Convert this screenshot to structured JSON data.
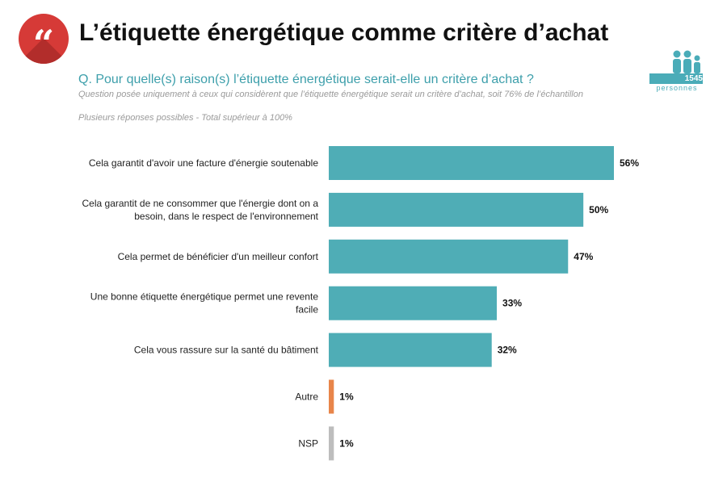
{
  "header": {
    "quote_glyph": "“",
    "title": "L’étiquette énergétique comme critère d’achat",
    "question": "Q. Pour quelle(s) raison(s) l’étiquette énergétique serait-elle un critère d’achat ?",
    "note_scope": "Question posée uniquement à ceux qui considèrent que l’étiquette énergétique serait un critère d’achat, soit 76% de l’échantillon",
    "note_multi": "Plusieurs réponses possibles - Total supérieur à 100%"
  },
  "sample": {
    "count": "1545",
    "label": "personnes",
    "icon": "people-group-icon"
  },
  "colors": {
    "teal": "#4fadb6",
    "orange": "#e8854a",
    "gray": "#bdbdbd",
    "accent_red": "#d63a37"
  },
  "chart_data": {
    "type": "bar",
    "orientation": "horizontal",
    "categories": [
      [
        "Cela garantit d'avoir une facture d'énergie soutenable"
      ],
      [
        "Cela garantit de ne consommer que l'énergie dont on a",
        "besoin, dans le respect de l'environnement"
      ],
      [
        "Cela permet de bénéficier d'un meilleur confort"
      ],
      [
        "Une bonne étiquette énergétique permet une revente",
        "facile"
      ],
      [
        "Cela vous rassure sur la santé du bâtiment"
      ],
      [
        "Autre"
      ],
      [
        "NSP"
      ]
    ],
    "values": [
      56,
      50,
      47,
      33,
      32,
      1,
      1
    ],
    "value_labels": [
      "56%",
      "50%",
      "47%",
      "33%",
      "32%",
      "1%",
      "1%"
    ],
    "bar_colors": [
      "#4fadb6",
      "#4fadb6",
      "#4fadb6",
      "#4fadb6",
      "#4fadb6",
      "#e8854a",
      "#bdbdbd"
    ],
    "xlim": [
      0,
      56
    ],
    "grid": false,
    "legend": "none"
  }
}
